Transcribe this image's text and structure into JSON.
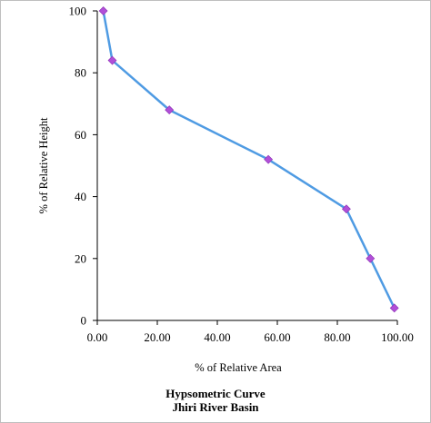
{
  "chart_data": {
    "type": "line",
    "title": "Hypsometric Curve",
    "subtitle": "Jhiri River Basin",
    "xlabel": "% of Relative Area",
    "ylabel": "% of Relative Height",
    "xlim": [
      0,
      100
    ],
    "ylim": [
      0,
      100
    ],
    "x_ticks": [
      "0.00",
      "20.00",
      "40.00",
      "60.00",
      "80.00",
      "100.00"
    ],
    "y_ticks": [
      "0",
      "20",
      "40",
      "60",
      "80",
      "100"
    ],
    "grid": false,
    "legend": "none",
    "line_color": "#4f9be3",
    "marker_color": "#b14fd8",
    "x": [
      2,
      5,
      24,
      57,
      83,
      91,
      99
    ],
    "y": [
      100,
      84,
      68,
      52,
      36,
      20,
      4
    ]
  }
}
